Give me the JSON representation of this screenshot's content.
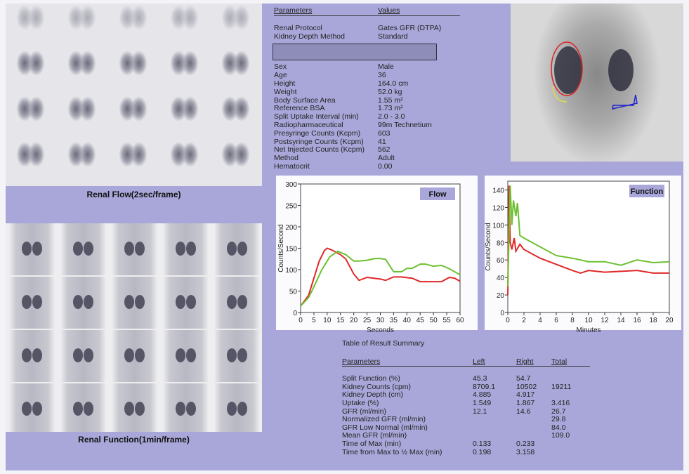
{
  "flow_label": "Renal Flow(2sec/frame)",
  "function_label": "Renal Function(1min/frame)",
  "parameters": {
    "header": [
      "Parameters",
      "Values"
    ],
    "rows_top": [
      [
        "Renal Protocol",
        "Gates GFR (DTPA)"
      ],
      [
        "Kidney Depth Method",
        "Standard"
      ]
    ],
    "rows": [
      [
        "Sex",
        "Male"
      ],
      [
        "Age",
        "36"
      ],
      [
        "Height",
        "164.0 cm"
      ],
      [
        "Weight",
        "52.0 kg"
      ],
      [
        "Body Surface Area",
        "1.55 m²"
      ],
      [
        "Reference BSA",
        "1.73 m²"
      ],
      [
        "Split Uptake Interval (min)",
        "2.0 - 3.0"
      ],
      [
        "Radiopharmaceutical",
        "99m Technetium"
      ],
      [
        "Presyringe Counts (Kcpm)",
        "603"
      ],
      [
        "Postsyringe Counts (Kcpm)",
        "41"
      ],
      [
        "Net Injected Counts (Kcpm)",
        "562"
      ],
      [
        "Method",
        "Adult"
      ],
      [
        "Hematocrit",
        "0.00"
      ]
    ]
  },
  "colors": {
    "left": "#e02828",
    "right": "#6cc030",
    "panel": "#a9a7d9"
  },
  "chart_data": [
    {
      "type": "line",
      "title": "Flow",
      "xlabel": "Seconds",
      "ylabel": "Counts/Second",
      "xlim": [
        0,
        60
      ],
      "ylim": [
        0,
        300
      ],
      "xticks": [
        0,
        5,
        10,
        15,
        20,
        25,
        30,
        35,
        40,
        45,
        50,
        55,
        60
      ],
      "yticks": [
        0,
        50,
        100,
        150,
        200,
        250,
        300
      ],
      "series": [
        {
          "name": "left",
          "color": "#e02828",
          "points": [
            [
              0,
              15
            ],
            [
              3,
              40
            ],
            [
              5,
              80
            ],
            [
              7,
              120
            ],
            [
              9,
              145
            ],
            [
              10,
              150
            ],
            [
              12,
              145
            ],
            [
              15,
              135
            ],
            [
              17,
              125
            ],
            [
              20,
              90
            ],
            [
              22,
              75
            ],
            [
              25,
              82
            ],
            [
              30,
              78
            ],
            [
              32,
              75
            ],
            [
              35,
              83
            ],
            [
              38,
              83
            ],
            [
              42,
              80
            ],
            [
              45,
              72
            ],
            [
              50,
              72
            ],
            [
              53,
              72
            ],
            [
              56,
              82
            ],
            [
              58,
              80
            ],
            [
              60,
              73
            ]
          ]
        },
        {
          "name": "right",
          "color": "#6cc030",
          "points": [
            [
              0,
              15
            ],
            [
              3,
              35
            ],
            [
              5,
              60
            ],
            [
              8,
              100
            ],
            [
              11,
              130
            ],
            [
              14,
              143
            ],
            [
              17,
              135
            ],
            [
              20,
              120
            ],
            [
              22,
              120
            ],
            [
              25,
              122
            ],
            [
              28,
              126
            ],
            [
              30,
              126
            ],
            [
              32,
              124
            ],
            [
              35,
              95
            ],
            [
              38,
              95
            ],
            [
              40,
              103
            ],
            [
              42,
              103
            ],
            [
              45,
              113
            ],
            [
              47,
              113
            ],
            [
              50,
              108
            ],
            [
              53,
              110
            ],
            [
              56,
              102
            ],
            [
              60,
              88
            ]
          ]
        }
      ]
    },
    {
      "type": "line",
      "title": "Function",
      "xlabel": "Minutes",
      "ylabel": "Counts/Second",
      "xlim": [
        0,
        20
      ],
      "ylim": [
        0,
        150
      ],
      "xticks": [
        0,
        2,
        4,
        6,
        8,
        10,
        12,
        14,
        16,
        18,
        20
      ],
      "yticks": [
        0,
        20,
        40,
        60,
        80,
        100,
        120,
        140
      ],
      "series": [
        {
          "name": "left",
          "color": "#e02828",
          "points": [
            [
              0,
              20
            ],
            [
              0.15,
              145
            ],
            [
              0.3,
              80
            ],
            [
              0.5,
              72
            ],
            [
              0.8,
              85
            ],
            [
              1,
              70
            ],
            [
              1.5,
              78
            ],
            [
              2,
              72
            ],
            [
              4,
              62
            ],
            [
              6,
              55
            ],
            [
              8,
              48
            ],
            [
              9,
              45
            ],
            [
              10,
              48
            ],
            [
              12,
              46
            ],
            [
              14,
              47
            ],
            [
              16,
              48
            ],
            [
              18,
              45
            ],
            [
              20,
              45
            ]
          ]
        },
        {
          "name": "right",
          "color": "#6cc030",
          "points": [
            [
              0,
              30
            ],
            [
              0.3,
              145
            ],
            [
              0.5,
              100
            ],
            [
              0.7,
              128
            ],
            [
              1,
              110
            ],
            [
              1.2,
              125
            ],
            [
              1.5,
              88
            ],
            [
              2,
              85
            ],
            [
              4,
              75
            ],
            [
              6,
              65
            ],
            [
              8,
              62
            ],
            [
              10,
              58
            ],
            [
              12,
              58
            ],
            [
              14,
              54
            ],
            [
              16,
              60
            ],
            [
              18,
              57
            ],
            [
              20,
              58
            ]
          ]
        }
      ]
    }
  ],
  "summary": {
    "title": "Table of Result Summary",
    "header": [
      "Parameters",
      "Left",
      "Right",
      "Total"
    ],
    "rows": [
      [
        "Split Function (%)",
        "45.3",
        "54.7",
        ""
      ],
      [
        "Kidney Counts (cpm)",
        "8709.1",
        "10502",
        "19211"
      ],
      [
        "Kidney Depth (cm)",
        "4.885",
        "4.917",
        ""
      ],
      [
        "Uptake (%)",
        "1.549",
        "1.867",
        "3.416"
      ],
      [
        "GFR (ml/min)",
        "12.1",
        "14.6",
        "26.7"
      ],
      [
        "Normalized GFR (ml/min)",
        "",
        "",
        "29.8"
      ],
      [
        "GFR Low Normal (ml/min)",
        "",
        "",
        "84.0"
      ],
      [
        "Mean GFR (ml/min)",
        "",
        "",
        "109.0"
      ],
      [
        "Time of Max (min)",
        "0.133",
        "0.233",
        ""
      ],
      [
        "Time from Max to ½ Max (min)",
        "0.198",
        "3.158",
        ""
      ]
    ]
  }
}
